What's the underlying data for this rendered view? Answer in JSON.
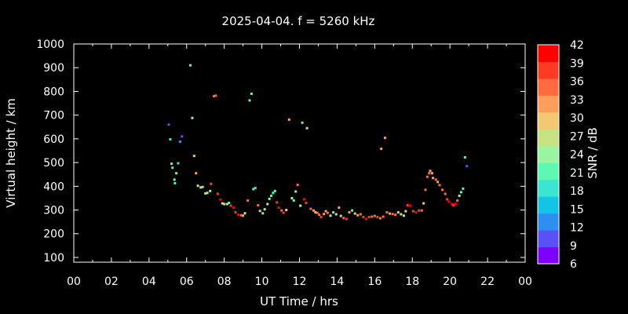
{
  "chart_data": {
    "type": "scatter",
    "title": "2025-04-04. f = 5260 kHz",
    "xlabel": "UT Time / hrs",
    "ylabel": "Virtual height / km",
    "colorbar_label": "SNR / dB",
    "xlim": [
      0,
      24
    ],
    "ylim": [
      80,
      1000
    ],
    "xticks": [
      "00",
      "02",
      "04",
      "06",
      "08",
      "10",
      "12",
      "14",
      "16",
      "18",
      "20",
      "22",
      "00"
    ],
    "yticks": [
      "100",
      "200",
      "300",
      "400",
      "500",
      "600",
      "700",
      "800",
      "900",
      "1000"
    ],
    "colorbar": {
      "range": [
        6,
        42
      ],
      "ticks": [
        "6",
        "9",
        "12",
        "15",
        "18",
        "21",
        "24",
        "27",
        "30",
        "33",
        "36",
        "39",
        "42"
      ],
      "colors": [
        "#8000ff",
        "#5a50f8",
        "#2e8ff2",
        "#14c4e6",
        "#3ae6cf",
        "#5ef8b3",
        "#9af4a0",
        "#c6e382",
        "#f2c870",
        "#ff9e5c",
        "#ff6b3e",
        "#ff3a22",
        "#ff0000"
      ]
    },
    "background": "#000000",
    "series": [
      {
        "points": [
          [
            5.05,
            660,
            9
          ],
          [
            5.13,
            598,
            18
          ],
          [
            5.2,
            495,
            20
          ],
          [
            5.25,
            478,
            22
          ],
          [
            5.35,
            428,
            21
          ],
          [
            5.38,
            413,
            20
          ],
          [
            5.45,
            455,
            22
          ],
          [
            5.55,
            497,
            18
          ],
          [
            5.65,
            588,
            12
          ],
          [
            5.75,
            610,
            9
          ],
          [
            6.2,
            910,
            21
          ],
          [
            6.3,
            688,
            24
          ],
          [
            6.4,
            528,
            30
          ],
          [
            6.5,
            455,
            33
          ],
          [
            6.6,
            402,
            27
          ],
          [
            6.75,
            395,
            26
          ],
          [
            6.85,
            397,
            24
          ],
          [
            7.0,
            370,
            24
          ],
          [
            7.1,
            372,
            26
          ],
          [
            7.25,
            380,
            24
          ],
          [
            7.3,
            410,
            38
          ],
          [
            7.45,
            780,
            34
          ],
          [
            7.55,
            782,
            36
          ],
          [
            7.65,
            368,
            38
          ],
          [
            7.8,
            344,
            40
          ],
          [
            7.9,
            328,
            30
          ],
          [
            8.0,
            325,
            27
          ],
          [
            8.15,
            325,
            24
          ],
          [
            8.25,
            330,
            22
          ],
          [
            8.35,
            318,
            38
          ],
          [
            8.5,
            310,
            40
          ],
          [
            8.6,
            290,
            38
          ],
          [
            8.75,
            280,
            40
          ],
          [
            8.9,
            278,
            34
          ],
          [
            9.0,
            276,
            31
          ],
          [
            9.1,
            286,
            26
          ],
          [
            9.25,
            340,
            34
          ],
          [
            9.35,
            762,
            21
          ],
          [
            9.45,
            790,
            20
          ],
          [
            9.55,
            388,
            21
          ],
          [
            9.65,
            393,
            18
          ],
          [
            9.8,
            320,
            36
          ],
          [
            9.9,
            296,
            30
          ],
          [
            10.05,
            286,
            27
          ],
          [
            10.15,
            303,
            24
          ],
          [
            10.3,
            325,
            27
          ],
          [
            10.4,
            347,
            24
          ],
          [
            10.5,
            360,
            22
          ],
          [
            10.6,
            372,
            21
          ],
          [
            10.7,
            380,
            20
          ],
          [
            10.8,
            332,
            38
          ],
          [
            10.9,
            310,
            40
          ],
          [
            11.05,
            298,
            36
          ],
          [
            11.15,
            288,
            38
          ],
          [
            11.3,
            300,
            30
          ],
          [
            11.45,
            681,
            31
          ],
          [
            11.6,
            350,
            24
          ],
          [
            11.7,
            340,
            21
          ],
          [
            11.8,
            378,
            26
          ],
          [
            11.9,
            406,
            36
          ],
          [
            12.05,
            318,
            24
          ],
          [
            12.15,
            668,
            20
          ],
          [
            12.25,
            345,
            40
          ],
          [
            12.35,
            330,
            38
          ],
          [
            12.4,
            645,
            27
          ],
          [
            12.6,
            305,
            36
          ],
          [
            12.75,
            298,
            31
          ],
          [
            12.85,
            290,
            30
          ],
          [
            12.95,
            288,
            34
          ],
          [
            13.05,
            280,
            36
          ],
          [
            13.15,
            270,
            38
          ],
          [
            13.3,
            283,
            33
          ],
          [
            13.4,
            295,
            31
          ],
          [
            13.5,
            288,
            36
          ],
          [
            13.65,
            276,
            27
          ],
          [
            13.8,
            290,
            22
          ],
          [
            13.95,
            282,
            24
          ],
          [
            14.1,
            310,
            33
          ],
          [
            14.2,
            275,
            30
          ],
          [
            14.35,
            266,
            34
          ],
          [
            14.5,
            262,
            38
          ],
          [
            14.65,
            290,
            31
          ],
          [
            14.8,
            298,
            22
          ],
          [
            14.95,
            285,
            30
          ],
          [
            15.1,
            278,
            33
          ],
          [
            15.25,
            282,
            36
          ],
          [
            15.4,
            270,
            38
          ],
          [
            15.55,
            262,
            40
          ],
          [
            15.7,
            270,
            38
          ],
          [
            15.85,
            272,
            36
          ],
          [
            16.0,
            275,
            34
          ],
          [
            16.15,
            270,
            38
          ],
          [
            16.3,
            265,
            36
          ],
          [
            16.35,
            558,
            33
          ],
          [
            16.45,
            272,
            34
          ],
          [
            16.55,
            604,
            31
          ],
          [
            16.65,
            290,
            36
          ],
          [
            16.8,
            285,
            33
          ],
          [
            16.95,
            283,
            36
          ],
          [
            17.1,
            280,
            34
          ],
          [
            17.25,
            290,
            30
          ],
          [
            17.4,
            282,
            27
          ],
          [
            17.55,
            276,
            26
          ],
          [
            17.65,
            295,
            30
          ],
          [
            17.75,
            320,
            38
          ],
          [
            17.9,
            318,
            40
          ],
          [
            18.05,
            295,
            38
          ],
          [
            18.2,
            290,
            40
          ],
          [
            18.35,
            298,
            38
          ],
          [
            18.5,
            298,
            36
          ],
          [
            18.6,
            328,
            30
          ],
          [
            18.7,
            385,
            34
          ],
          [
            18.8,
            440,
            36
          ],
          [
            18.9,
            455,
            34
          ],
          [
            18.95,
            465,
            33
          ],
          [
            19.05,
            455,
            31
          ],
          [
            19.1,
            435,
            31
          ],
          [
            19.25,
            428,
            34
          ],
          [
            19.35,
            418,
            33
          ],
          [
            19.45,
            405,
            36
          ],
          [
            19.6,
            385,
            34
          ],
          [
            19.75,
            368,
            36
          ],
          [
            19.85,
            345,
            38
          ],
          [
            19.95,
            335,
            40
          ],
          [
            20.1,
            325,
            40
          ],
          [
            20.2,
            320,
            38
          ],
          [
            20.3,
            326,
            40
          ],
          [
            20.4,
            340,
            34
          ],
          [
            20.5,
            360,
            24
          ],
          [
            20.6,
            375,
            22
          ],
          [
            20.7,
            390,
            22
          ],
          [
            20.8,
            522,
            20
          ],
          [
            20.9,
            485,
            9
          ]
        ]
      }
    ]
  }
}
